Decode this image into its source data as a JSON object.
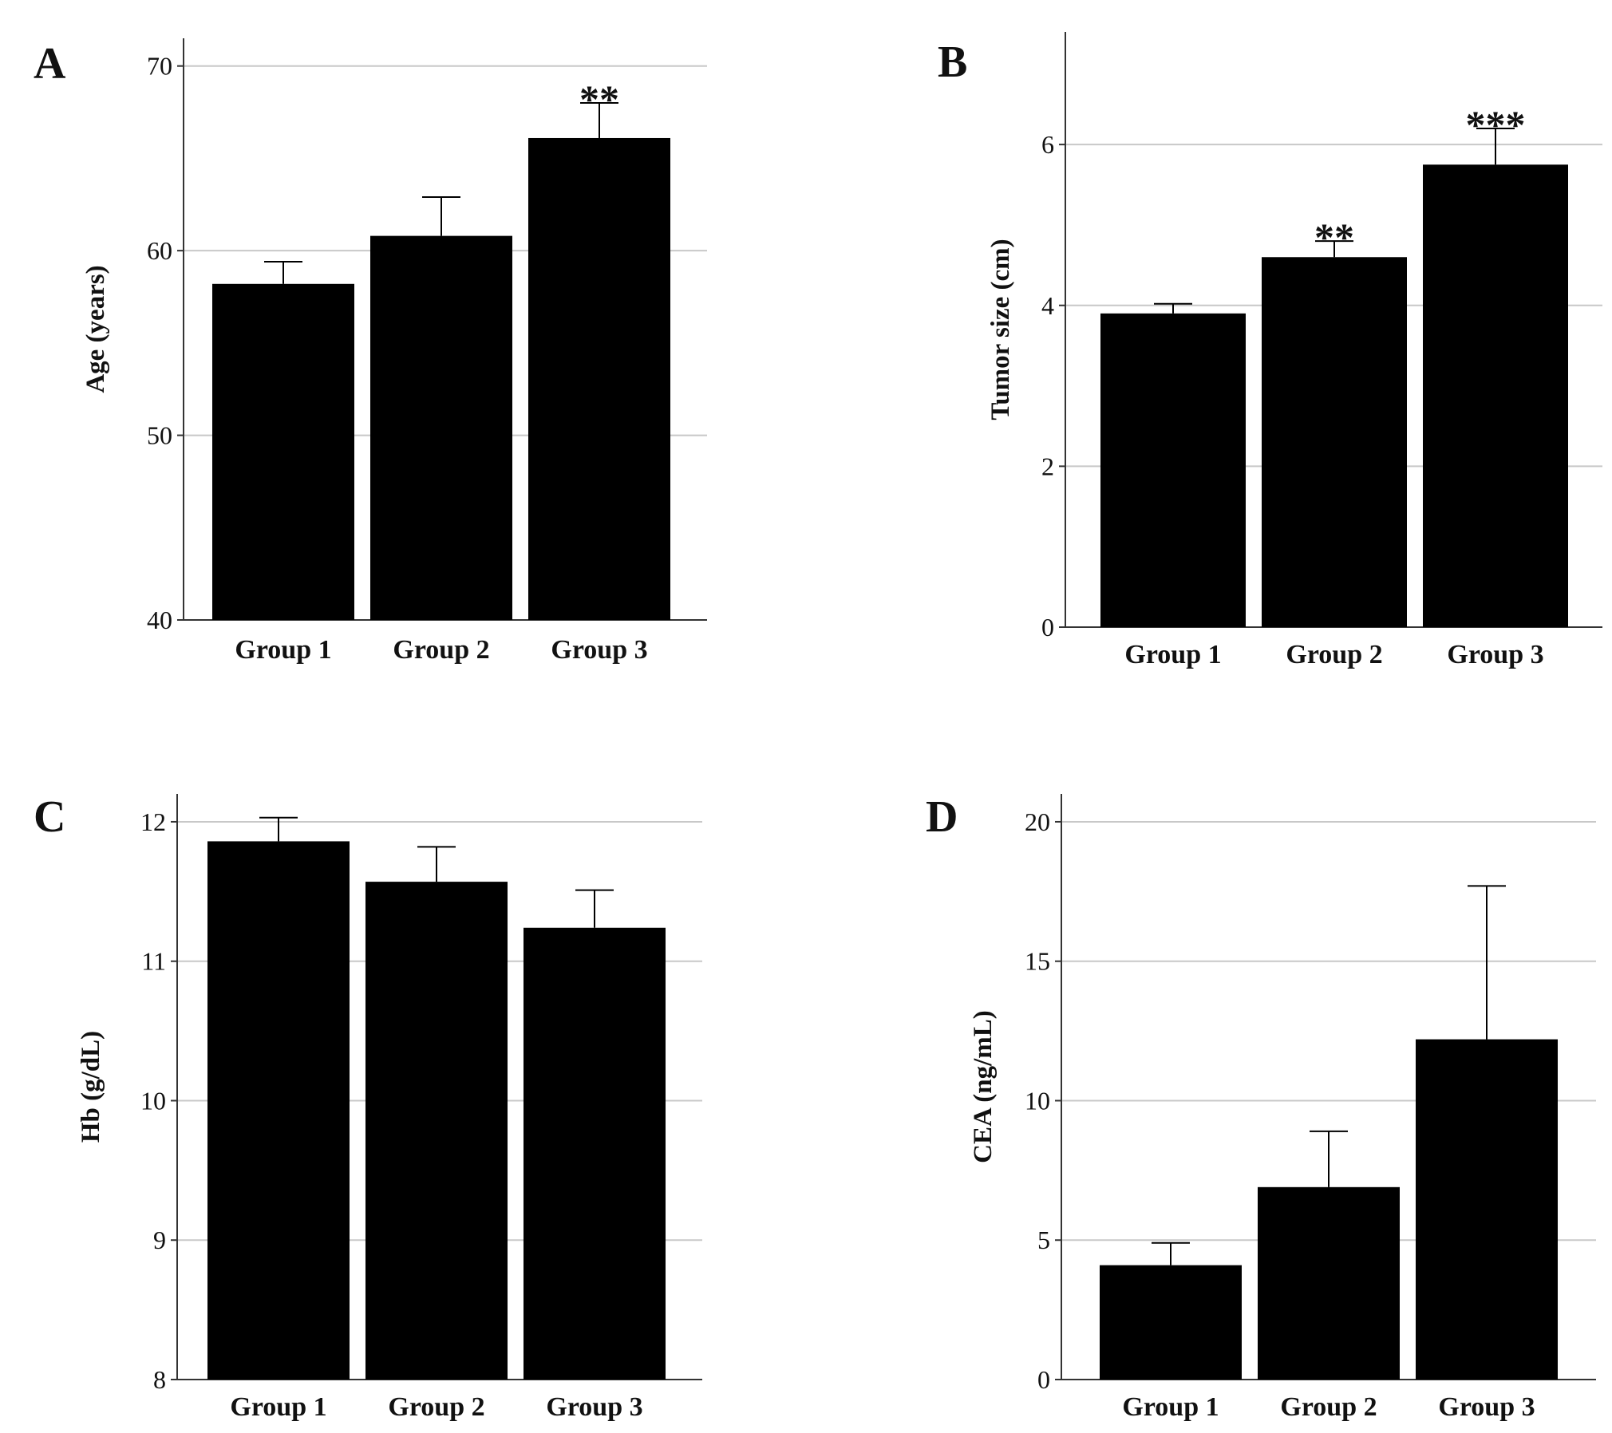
{
  "colors": {
    "bar": "#000000",
    "grid": "#c8c8c8",
    "axis": "#333333",
    "text": "#111111"
  },
  "chart_data": [
    {
      "panel": "A",
      "type": "bar",
      "categories": [
        "Group 1",
        "Group 2",
        "Group 3"
      ],
      "values": [
        58.2,
        60.8,
        66.1
      ],
      "error_upper": [
        59.4,
        62.9,
        68.0
      ],
      "significance": [
        "",
        "",
        "**"
      ],
      "xlabel": "",
      "ylabel": "Age (years)",
      "ylim": [
        40,
        71.5
      ],
      "yticks": [
        40,
        50,
        60,
        70
      ],
      "grid": true
    },
    {
      "panel": "B",
      "type": "bar",
      "categories": [
        "Group 1",
        "Group 2",
        "Group 3"
      ],
      "values": [
        3.9,
        4.6,
        5.75
      ],
      "error_upper": [
        4.02,
        4.8,
        6.2
      ],
      "significance": [
        "",
        "**",
        "***"
      ],
      "xlabel": "",
      "ylabel": "Tumor size (cm)",
      "ylim": [
        0,
        7.4
      ],
      "yticks": [
        0,
        2,
        4,
        6
      ],
      "grid": true
    },
    {
      "panel": "C",
      "type": "bar",
      "categories": [
        "Group 1",
        "Group 2",
        "Group 3"
      ],
      "values": [
        11.86,
        11.57,
        11.24
      ],
      "error_upper": [
        12.03,
        11.82,
        11.51
      ],
      "significance": [
        "",
        "",
        ""
      ],
      "xlabel": "",
      "ylabel": "Hb (g/dL)",
      "ylim": [
        8,
        12.2
      ],
      "yticks": [
        8,
        9,
        10,
        11,
        12
      ],
      "grid": true
    },
    {
      "panel": "D",
      "type": "bar",
      "categories": [
        "Group 1",
        "Group 2",
        "Group 3"
      ],
      "values": [
        4.1,
        6.9,
        12.2
      ],
      "error_upper": [
        4.9,
        8.9,
        17.7
      ],
      "significance": [
        "",
        "",
        ""
      ],
      "xlabel": "",
      "ylabel": "CEA (ng/mL)",
      "ylim": [
        0,
        21
      ],
      "yticks": [
        0,
        5,
        10,
        15,
        20
      ],
      "grid": true
    }
  ]
}
